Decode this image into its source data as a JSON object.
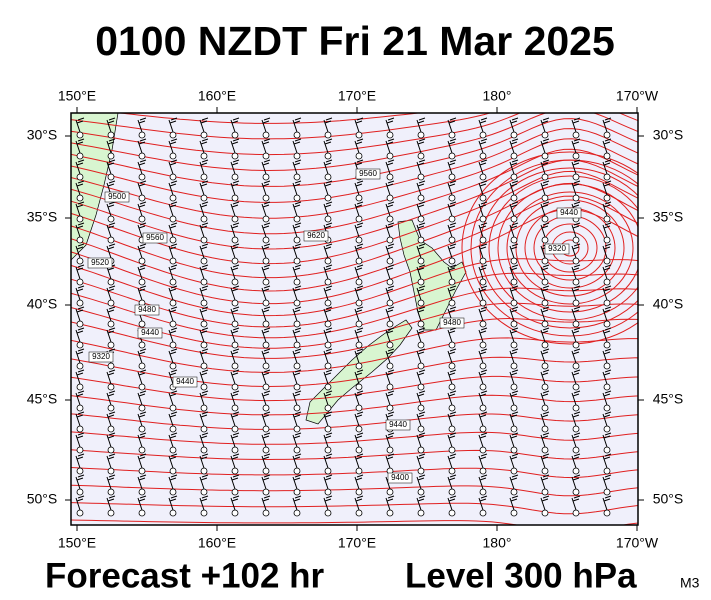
{
  "title": "0100 NZDT Fri 21 Mar 2025",
  "longitude_labels": [
    "150°E",
    "160°E",
    "170°E",
    "180°",
    "170°W"
  ],
  "latitude_labels": [
    "30°S",
    "35°S",
    "40°S",
    "45°S",
    "50°S"
  ],
  "contour_labels": [
    "9500",
    "9560",
    "9520",
    "9480",
    "9440",
    "9320",
    "9440",
    "9620",
    "9560",
    "9440",
    "9320",
    "9480",
    "9440",
    "9400"
  ],
  "footer": {
    "forecast": "Forecast +102 hr",
    "level": "Level 300 hPa",
    "model": "M3"
  }
}
